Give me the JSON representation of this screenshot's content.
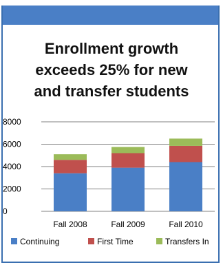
{
  "chart_data": {
    "type": "bar",
    "stacked": true,
    "title_lines": [
      "Enrollment growth",
      "exceeds 25% for new",
      "and transfer students"
    ],
    "categories": [
      "Fall 2008",
      "Fall 2009",
      "Fall 2010"
    ],
    "series": [
      {
        "name": "Continuing",
        "color": "#4a7fc6",
        "values": [
          3400,
          3900,
          4400
        ]
      },
      {
        "name": "First Time",
        "color": "#c0504d",
        "values": [
          1200,
          1300,
          1450
        ]
      },
      {
        "name": "Transfers In",
        "color": "#9bbb59",
        "values": [
          500,
          550,
          650
        ]
      }
    ],
    "ylim": [
      0,
      8000
    ],
    "yticks": [
      0,
      2000,
      4000,
      6000,
      8000
    ],
    "grid": true,
    "legend_position": "bottom"
  }
}
